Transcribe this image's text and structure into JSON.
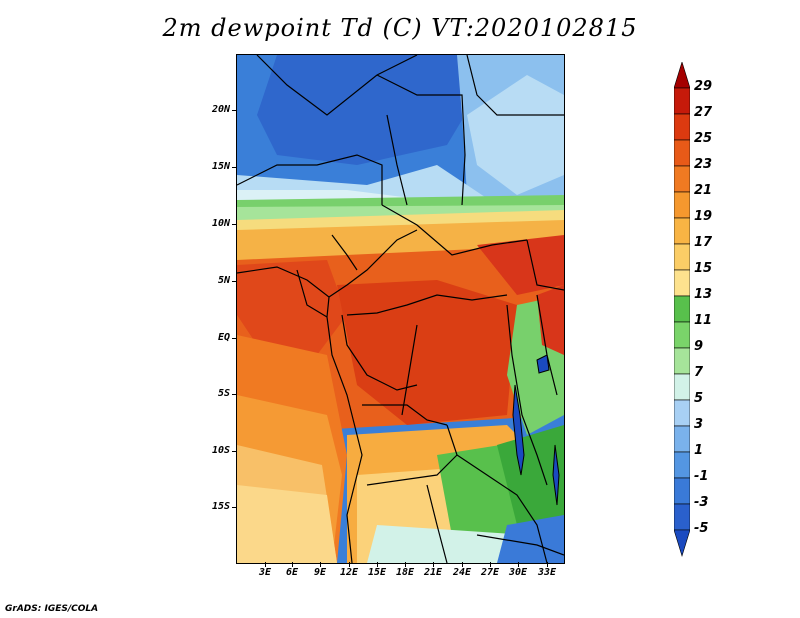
{
  "title": "2m dewpoint Td (C) VT:2020102815",
  "footer": "GrADS: IGES/COLA",
  "lat_labels": [
    "20N",
    "15N",
    "10N",
    "5N",
    "EQ",
    "5S",
    "10S",
    "15S"
  ],
  "lon_labels": [
    "3E",
    "6E",
    "9E",
    "12E",
    "15E",
    "18E",
    "21E",
    "24E",
    "27E",
    "30E",
    "33E"
  ],
  "colorbar": {
    "labels": [
      "29",
      "27",
      "25",
      "23",
      "21",
      "19",
      "17",
      "15",
      "13",
      "11",
      "9",
      "7",
      "5",
      "3",
      "1",
      "-1",
      "-3",
      "-5"
    ],
    "colors": [
      "#a40000",
      "#c61a0a",
      "#dc3a10",
      "#e85a18",
      "#f07a22",
      "#f5982e",
      "#f8b444",
      "#fbcd66",
      "#fde28e",
      "#58c04c",
      "#7ad46a",
      "#a6e49a",
      "#d2f2e8",
      "#a8d0f4",
      "#7ab2ec",
      "#5496e2",
      "#3a7ad8",
      "#2a60cc",
      "#1a4ac0"
    ]
  }
}
